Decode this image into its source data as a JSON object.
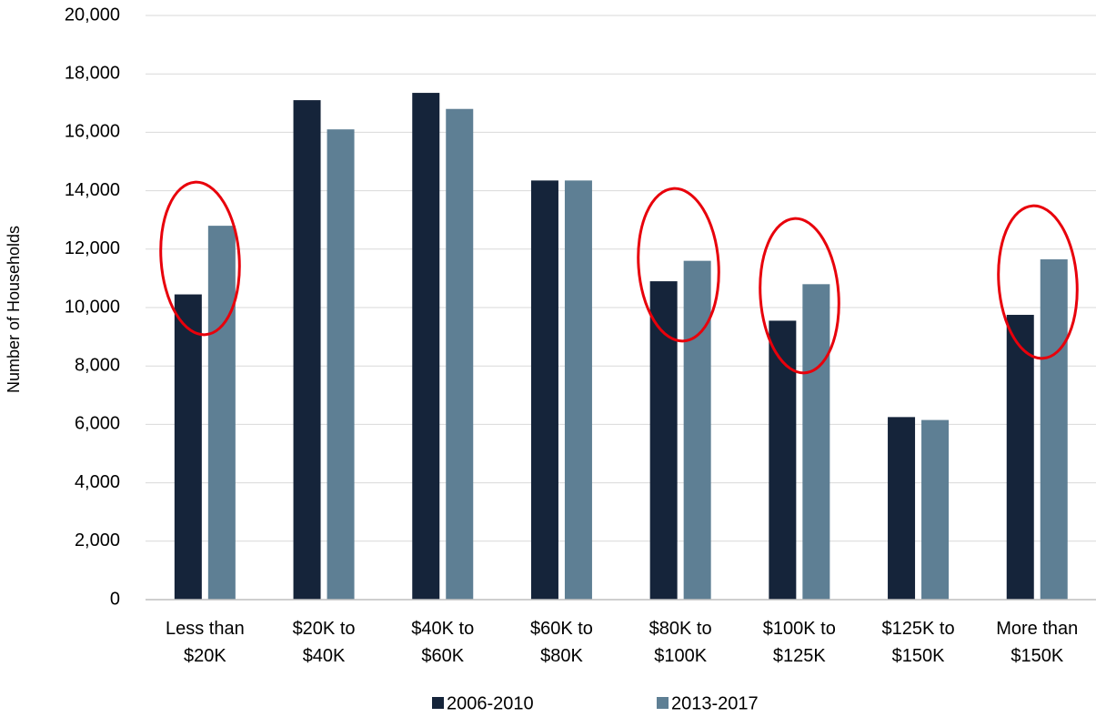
{
  "chart_data": {
    "type": "bar",
    "y_label": "Number of Households",
    "categories": [
      "Less than\n$20K",
      "$20K to\n$40K",
      "$40K to\n$60K",
      "$60K to\n$80K",
      "$80K to\n$100K",
      "$100K to\n$125K",
      "$125K to\n$150K",
      "More than\n$150K"
    ],
    "series": [
      {
        "name": "2006-2010",
        "color": "#15243a",
        "values": [
          10450,
          17100,
          17350,
          14350,
          10900,
          9550,
          6250,
          9750
        ]
      },
      {
        "name": "2013-2017",
        "color": "#5e7f94",
        "values": [
          12800,
          16100,
          16800,
          14350,
          11600,
          10800,
          6150,
          11650
        ]
      }
    ],
    "ylim": [
      0,
      20000
    ],
    "yticks": [
      0,
      {
        "value": 2000,
        "label": "2,000"
      },
      {
        "value": 4000,
        "label": "4,000"
      },
      {
        "value": 6000,
        "label": "6,000"
      },
      {
        "value": 8000,
        "label": "8,000"
      },
      {
        "value": 10000,
        "label": "10,000"
      },
      {
        "value": 12000,
        "label": "12,000"
      },
      {
        "value": 14000,
        "label": "14,000"
      },
      {
        "value": 16000,
        "label": "16,000"
      },
      {
        "value": 18000,
        "label": "18,000"
      },
      {
        "value": 20000,
        "label": "20,000"
      }
    ],
    "grid": true,
    "legend": "bottom"
  }
}
